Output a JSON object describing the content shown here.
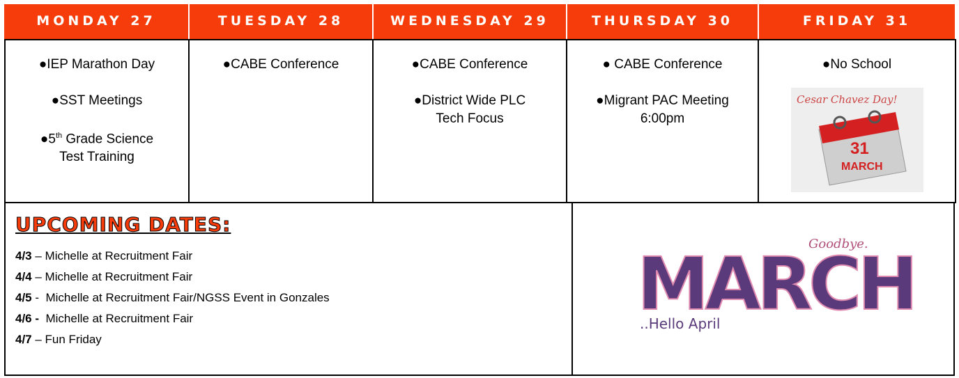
{
  "days": [
    {
      "header": "MONDAY 27",
      "items": [
        [
          "●IEP Marathon Day"
        ],
        [
          "●SST Meetings"
        ],
        [
          {
            "pre": "●5",
            "sup": "th",
            "post": " Grade Science"
          },
          "Test Training"
        ]
      ]
    },
    {
      "header": "TUESDAY 28",
      "items": [
        [
          "●CABE Conference"
        ]
      ]
    },
    {
      "header": "WEDNESDAY 29",
      "items": [
        [
          "●CABE Conference"
        ],
        [
          "●District Wide PLC",
          "Tech Focus"
        ]
      ]
    },
    {
      "header": "THURSDAY 30",
      "items": [
        [
          "● CABE Conference"
        ],
        [
          "●Migrant PAC Meeting",
          "6:00pm"
        ]
      ]
    },
    {
      "header": "FRIDAY 31",
      "items": [
        [
          "●No School"
        ]
      ]
    }
  ],
  "calendar_image": {
    "script": "Cesar Chavez Day!",
    "day": "31",
    "month": "MARCH"
  },
  "upcoming": {
    "title": "UPCOMING DATES:",
    "entries": [
      {
        "date": "4/3",
        "text": " – Michelle at Recruitment Fair"
      },
      {
        "date": "4/4",
        "text": " – Michelle at Recruitment Fair"
      },
      {
        "date": "4/5",
        "text": " -  Michelle at Recruitment Fair/NGSS Event in Gonzales"
      },
      {
        "date": "4/6 -",
        "text": "  Michelle at Recruitment Fair"
      },
      {
        "date": "4/7",
        "text": " – Fun Friday"
      }
    ]
  },
  "march_image": {
    "goodbye": "Goodbye.",
    "word": "MARCH",
    "hello": "..Hello April"
  }
}
